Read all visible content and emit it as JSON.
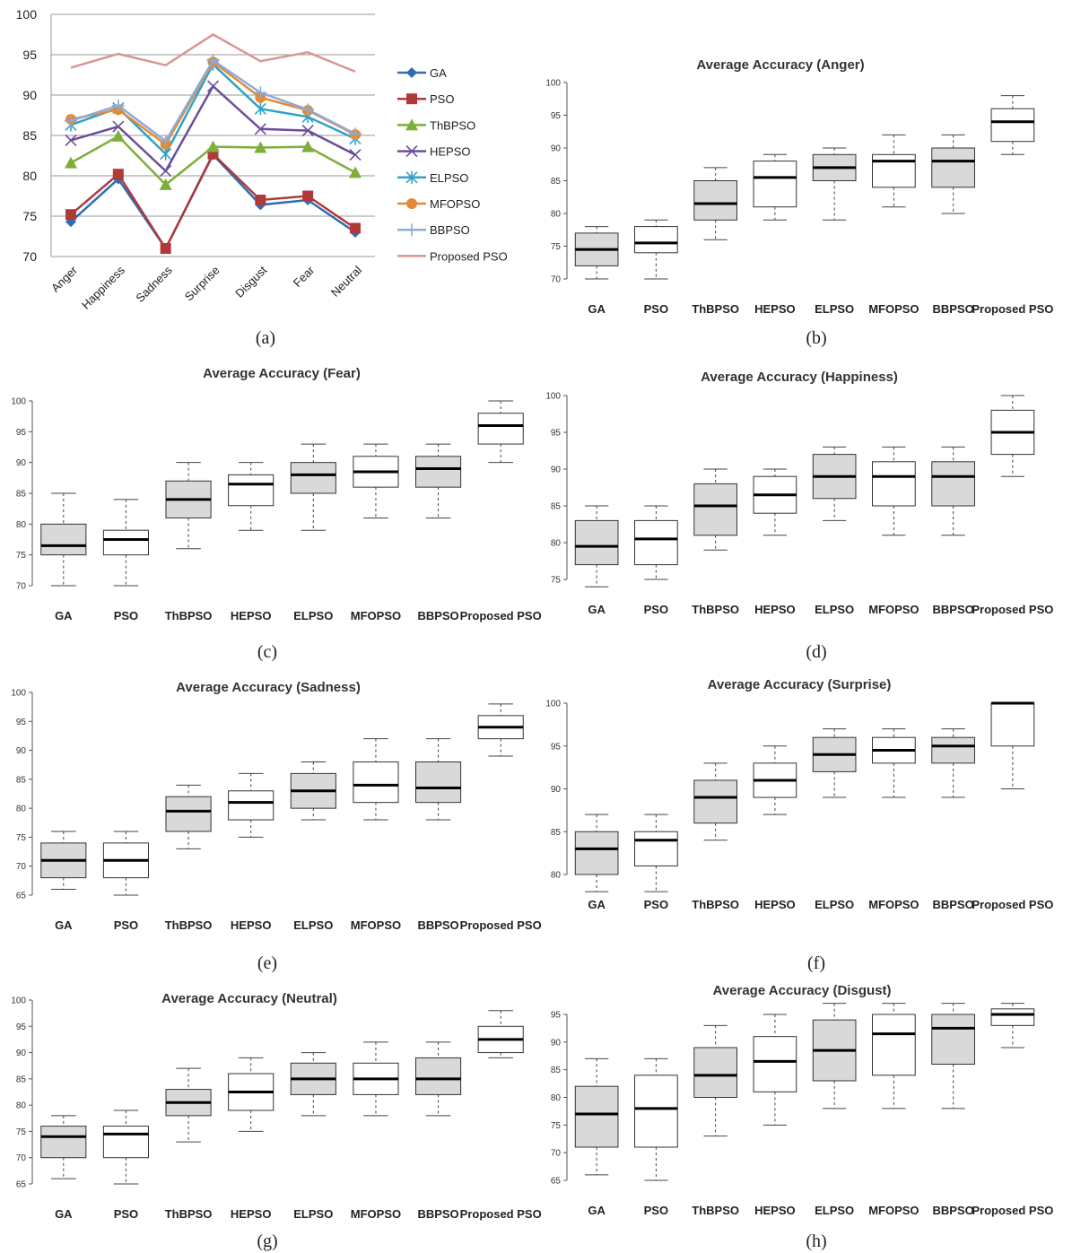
{
  "chart_data": [
    {
      "id": "a",
      "panel_label": "(a)",
      "type": "line",
      "categories": [
        "Anger",
        "Happiness",
        "Sadness",
        "Surprise",
        "Disgust",
        "Fear",
        "Neutral"
      ],
      "yticks": [
        70,
        75,
        80,
        85,
        90,
        95,
        100
      ],
      "ylim": [
        70,
        100
      ],
      "grid": true,
      "legend": "right",
      "series": [
        {
          "name": "GA",
          "color": "#2e6db4",
          "marker": "diamond",
          "values": [
            74.3,
            79.6,
            71.0,
            82.6,
            76.4,
            77.0,
            73.0
          ]
        },
        {
          "name": "PSO",
          "color": "#b0393a",
          "marker": "square",
          "values": [
            75.2,
            80.2,
            71.0,
            82.7,
            77.0,
            77.5,
            73.5
          ]
        },
        {
          "name": "ThBPSO",
          "color": "#7fae3a",
          "marker": "triangle",
          "values": [
            81.6,
            84.9,
            78.9,
            83.6,
            83.5,
            83.6,
            80.4
          ]
        },
        {
          "name": "HEPSO",
          "color": "#6b4e9b",
          "marker": "x",
          "values": [
            84.4,
            86.1,
            80.6,
            91.1,
            85.8,
            85.6,
            82.6
          ]
        },
        {
          "name": "ELPSO",
          "color": "#2fa3c5",
          "marker": "star",
          "values": [
            86.3,
            88.4,
            82.7,
            93.8,
            88.3,
            87.3,
            84.6
          ]
        },
        {
          "name": "MFOPSO",
          "color": "#e58a34",
          "marker": "circle",
          "values": [
            87.0,
            88.2,
            83.9,
            94.1,
            89.7,
            88.1,
            85.1
          ]
        },
        {
          "name": "BBPSO",
          "color": "#8eaad8",
          "marker": "plus",
          "values": [
            86.8,
            88.7,
            84.3,
            94.3,
            90.3,
            88.2,
            85.2
          ]
        },
        {
          "name": "Proposed PSO",
          "color": "#d99694",
          "marker": "none",
          "values": [
            93.4,
            95.1,
            93.7,
            97.5,
            94.2,
            95.3,
            92.9
          ]
        }
      ]
    },
    {
      "id": "b",
      "panel_label": "(b)",
      "type": "box",
      "title": "Average Accuracy (Anger)",
      "categories": [
        "GA",
        "PSO",
        "ThBPSO",
        "HEPSO",
        "ELPSO",
        "MFOPSO",
        "BBPSO",
        "Proposed PSO"
      ],
      "yticks": [
        70,
        75,
        80,
        85,
        90,
        95,
        100
      ],
      "ylim": [
        70,
        100
      ],
      "boxes": [
        {
          "min": 70,
          "q1": 72,
          "median": 74.5,
          "q3": 77,
          "max": 78,
          "fill": "#d9d9d9"
        },
        {
          "min": 70,
          "q1": 74,
          "median": 75.5,
          "q3": 78,
          "max": 79,
          "fill": "#ffffff"
        },
        {
          "min": 76,
          "q1": 79,
          "median": 81.5,
          "q3": 85,
          "max": 87,
          "fill": "#d9d9d9"
        },
        {
          "min": 79,
          "q1": 81,
          "median": 85.5,
          "q3": 88,
          "max": 89,
          "fill": "#ffffff"
        },
        {
          "min": 79,
          "q1": 85,
          "median": 87,
          "q3": 89,
          "max": 90,
          "fill": "#d9d9d9"
        },
        {
          "min": 81,
          "q1": 84,
          "median": 88,
          "q3": 89,
          "max": 92,
          "fill": "#ffffff"
        },
        {
          "min": 80,
          "q1": 84,
          "median": 88,
          "q3": 90,
          "max": 92,
          "fill": "#d9d9d9"
        },
        {
          "min": 89,
          "q1": 91,
          "median": 94,
          "q3": 96,
          "max": 98,
          "fill": "#ffffff"
        }
      ]
    },
    {
      "id": "c",
      "panel_label": "(c)",
      "type": "box",
      "title": "Average Accuracy (Fear)",
      "categories": [
        "GA",
        "PSO",
        "ThBPSO",
        "HEPSO",
        "ELPSO",
        "MFOPSO",
        "BBPSO",
        "Proposed PSO"
      ],
      "yticks": [
        70,
        75,
        80,
        85,
        90,
        95,
        100
      ],
      "ylim": [
        70,
        100
      ],
      "boxes": [
        {
          "min": 70,
          "q1": 75,
          "median": 76.5,
          "q3": 80,
          "max": 85,
          "fill": "#d9d9d9"
        },
        {
          "min": 70,
          "q1": 75,
          "median": 77.5,
          "q3": 79,
          "max": 84,
          "fill": "#ffffff"
        },
        {
          "min": 76,
          "q1": 81,
          "median": 84,
          "q3": 87,
          "max": 90,
          "fill": "#d9d9d9"
        },
        {
          "min": 79,
          "q1": 83,
          "median": 86.5,
          "q3": 88,
          "max": 90,
          "fill": "#ffffff"
        },
        {
          "min": 79,
          "q1": 85,
          "median": 88,
          "q3": 90,
          "max": 93,
          "fill": "#d9d9d9"
        },
        {
          "min": 81,
          "q1": 86,
          "median": 88.5,
          "q3": 91,
          "max": 93,
          "fill": "#ffffff"
        },
        {
          "min": 81,
          "q1": 86,
          "median": 89,
          "q3": 91,
          "max": 93,
          "fill": "#d9d9d9"
        },
        {
          "min": 90,
          "q1": 93,
          "median": 96,
          "q3": 98,
          "max": 100,
          "fill": "#ffffff"
        }
      ]
    },
    {
      "id": "d",
      "panel_label": "(d)",
      "type": "box",
      "title": "Average Accuracy (Happiness)",
      "categories": [
        "GA",
        "PSO",
        "ThBPSO",
        "HEPSO",
        "ELPSO",
        "MFOPSO",
        "BBPSO",
        "Proposed PSO"
      ],
      "yticks": [
        75,
        80,
        85,
        90,
        95,
        100
      ],
      "ylim": [
        75,
        100
      ],
      "boxes": [
        {
          "min": 74,
          "q1": 77,
          "median": 79.5,
          "q3": 83,
          "max": 85,
          "fill": "#d9d9d9"
        },
        {
          "min": 75,
          "q1": 77,
          "median": 80.5,
          "q3": 83,
          "max": 85,
          "fill": "#ffffff"
        },
        {
          "min": 79,
          "q1": 81,
          "median": 85,
          "q3": 88,
          "max": 90,
          "fill": "#d9d9d9"
        },
        {
          "min": 81,
          "q1": 84,
          "median": 86.5,
          "q3": 89,
          "max": 90,
          "fill": "#ffffff"
        },
        {
          "min": 83,
          "q1": 86,
          "median": 89,
          "q3": 92,
          "max": 93,
          "fill": "#d9d9d9"
        },
        {
          "min": 81,
          "q1": 85,
          "median": 89,
          "q3": 91,
          "max": 93,
          "fill": "#ffffff"
        },
        {
          "min": 81,
          "q1": 85,
          "median": 89,
          "q3": 91,
          "max": 93,
          "fill": "#d9d9d9"
        },
        {
          "min": 89,
          "q1": 92,
          "median": 95,
          "q3": 98,
          "max": 100,
          "fill": "#ffffff"
        }
      ]
    },
    {
      "id": "e",
      "panel_label": "(e)",
      "type": "box",
      "title": "Average Accuracy (Sadness)",
      "categories": [
        "GA",
        "PSO",
        "ThBPSO",
        "HEPSO",
        "ELPSO",
        "MFOPSO",
        "BBPSO",
        "Proposed PSO"
      ],
      "yticks": [
        65,
        70,
        75,
        80,
        85,
        90,
        95,
        100
      ],
      "ylim": [
        65,
        100
      ],
      "boxes": [
        {
          "min": 66,
          "q1": 68,
          "median": 71,
          "q3": 74,
          "max": 76,
          "fill": "#d9d9d9"
        },
        {
          "min": 65,
          "q1": 68,
          "median": 71,
          "q3": 74,
          "max": 76,
          "fill": "#ffffff"
        },
        {
          "min": 73,
          "q1": 76,
          "median": 79.5,
          "q3": 82,
          "max": 84,
          "fill": "#d9d9d9"
        },
        {
          "min": 75,
          "q1": 78,
          "median": 81,
          "q3": 83,
          "max": 86,
          "fill": "#ffffff"
        },
        {
          "min": 78,
          "q1": 80,
          "median": 83,
          "q3": 86,
          "max": 88,
          "fill": "#d9d9d9"
        },
        {
          "min": 78,
          "q1": 81,
          "median": 84,
          "q3": 88,
          "max": 92,
          "fill": "#ffffff"
        },
        {
          "min": 78,
          "q1": 81,
          "median": 83.5,
          "q3": 88,
          "max": 92,
          "fill": "#d9d9d9"
        },
        {
          "min": 89,
          "q1": 92,
          "median": 94,
          "q3": 96,
          "max": 98,
          "fill": "#ffffff"
        }
      ]
    },
    {
      "id": "f",
      "panel_label": "(f)",
      "type": "box",
      "title": "Average Accuracy (Surprise)",
      "categories": [
        "GA",
        "PSO",
        "ThBPSO",
        "HEPSO",
        "ELPSO",
        "MFOPSO",
        "BBPSO",
        "Proposed PSO"
      ],
      "yticks": [
        80,
        85,
        90,
        95,
        100
      ],
      "ylim": [
        80,
        100
      ],
      "boxes": [
        {
          "min": 78,
          "q1": 80,
          "median": 83,
          "q3": 85,
          "max": 87,
          "fill": "#d9d9d9"
        },
        {
          "min": 78,
          "q1": 81,
          "median": 84,
          "q3": 85,
          "max": 87,
          "fill": "#ffffff"
        },
        {
          "min": 84,
          "q1": 86,
          "median": 89,
          "q3": 91,
          "max": 93,
          "fill": "#d9d9d9"
        },
        {
          "min": 87,
          "q1": 89,
          "median": 91,
          "q3": 93,
          "max": 95,
          "fill": "#ffffff"
        },
        {
          "min": 89,
          "q1": 92,
          "median": 94,
          "q3": 96,
          "max": 97,
          "fill": "#d9d9d9"
        },
        {
          "min": 89,
          "q1": 93,
          "median": 94.5,
          "q3": 96,
          "max": 97,
          "fill": "#ffffff"
        },
        {
          "min": 89,
          "q1": 93,
          "median": 95,
          "q3": 96,
          "max": 97,
          "fill": "#d9d9d9"
        },
        {
          "min": 90,
          "q1": 95,
          "median": 100,
          "q3": 100,
          "max": 100,
          "fill": "#ffffff"
        }
      ]
    },
    {
      "id": "g",
      "panel_label": "(g)",
      "type": "box",
      "title": "Average Accuracy (Neutral)",
      "categories": [
        "GA",
        "PSO",
        "ThBPSO",
        "HEPSO",
        "ELPSO",
        "MFOPSO",
        "BBPSO",
        "Proposed PSO"
      ],
      "yticks": [
        65,
        70,
        75,
        80,
        85,
        90,
        95,
        100
      ],
      "ylim": [
        65,
        100
      ],
      "boxes": [
        {
          "min": 66,
          "q1": 70,
          "median": 74,
          "q3": 76,
          "max": 78,
          "fill": "#d9d9d9"
        },
        {
          "min": 65,
          "q1": 70,
          "median": 74.5,
          "q3": 76,
          "max": 79,
          "fill": "#ffffff"
        },
        {
          "min": 73,
          "q1": 78,
          "median": 80.5,
          "q3": 83,
          "max": 87,
          "fill": "#d9d9d9"
        },
        {
          "min": 75,
          "q1": 79,
          "median": 82.5,
          "q3": 86,
          "max": 89,
          "fill": "#ffffff"
        },
        {
          "min": 78,
          "q1": 82,
          "median": 85,
          "q3": 88,
          "max": 90,
          "fill": "#d9d9d9"
        },
        {
          "min": 78,
          "q1": 82,
          "median": 85,
          "q3": 88,
          "max": 92,
          "fill": "#ffffff"
        },
        {
          "min": 78,
          "q1": 82,
          "median": 85,
          "q3": 89,
          "max": 92,
          "fill": "#d9d9d9"
        },
        {
          "min": 89,
          "q1": 90,
          "median": 92.5,
          "q3": 95,
          "max": 98,
          "fill": "#ffffff"
        }
      ]
    },
    {
      "id": "h",
      "panel_label": "(h)",
      "type": "box",
      "title": "Average Accuracy (Disgust)",
      "categories": [
        "GA",
        "PSO",
        "ThBPSO",
        "HEPSO",
        "ELPSO",
        "MFOPSO",
        "BBPSO",
        "Proposed PSO"
      ],
      "yticks": [
        65,
        70,
        75,
        80,
        85,
        90,
        95
      ],
      "ylim": [
        65,
        95
      ],
      "boxes": [
        {
          "min": 66,
          "q1": 71,
          "median": 77,
          "q3": 82,
          "max": 87,
          "fill": "#d9d9d9"
        },
        {
          "min": 65,
          "q1": 71,
          "median": 78,
          "q3": 84,
          "max": 87,
          "fill": "#ffffff"
        },
        {
          "min": 73,
          "q1": 80,
          "median": 84,
          "q3": 89,
          "max": 93,
          "fill": "#d9d9d9"
        },
        {
          "min": 75,
          "q1": 81,
          "median": 86.5,
          "q3": 91,
          "max": 95,
          "fill": "#ffffff"
        },
        {
          "min": 78,
          "q1": 83,
          "median": 88.5,
          "q3": 94,
          "max": 97,
          "fill": "#d9d9d9"
        },
        {
          "min": 78,
          "q1": 84,
          "median": 91.5,
          "q3": 95,
          "max": 97,
          "fill": "#ffffff"
        },
        {
          "min": 78,
          "q1": 86,
          "median": 92.5,
          "q3": 95,
          "max": 97,
          "fill": "#d9d9d9"
        },
        {
          "min": 89,
          "q1": 93,
          "median": 95,
          "q3": 96,
          "max": 97,
          "fill": "#ffffff"
        }
      ]
    }
  ]
}
